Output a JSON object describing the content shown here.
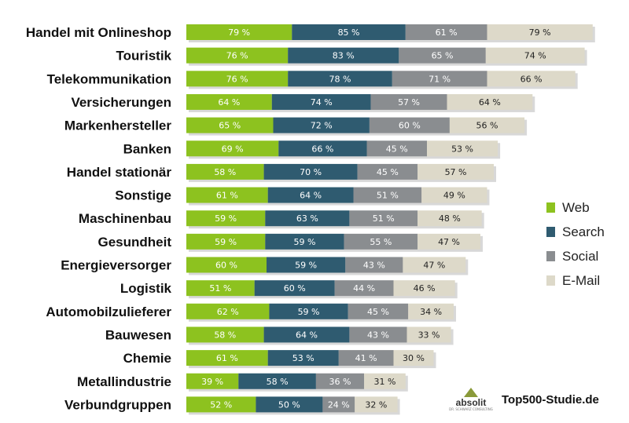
{
  "chart_data": {
    "type": "bar",
    "orientation": "horizontal",
    "stacked": true,
    "value_suffix": " %",
    "categories": [
      "Handel mit Onlineshop",
      "Touristik",
      "Telekommunikation",
      "Versicherungen",
      "Markenhersteller",
      "Banken",
      "Handel stationär",
      "Sonstige",
      "Maschinenbau",
      "Gesundheit",
      "Energieversorger",
      "Logistik",
      "Automobilzulieferer",
      "Bauwesen",
      "Chemie",
      "Metallindustrie",
      "Verbundgruppen"
    ],
    "series": [
      {
        "name": "Web",
        "color": "#8dc21f",
        "label_color": "#ffffff",
        "values": [
          79,
          76,
          76,
          64,
          65,
          69,
          58,
          61,
          59,
          59,
          60,
          51,
          62,
          58,
          61,
          39,
          52
        ]
      },
      {
        "name": "Search",
        "color": "#2f5b70",
        "label_color": "#ffffff",
        "values": [
          85,
          83,
          78,
          74,
          72,
          66,
          70,
          64,
          63,
          59,
          59,
          60,
          59,
          64,
          53,
          58,
          50
        ]
      },
      {
        "name": "Social",
        "color": "#8a8d90",
        "label_color": "#ffffff",
        "values": [
          61,
          65,
          71,
          57,
          60,
          45,
          45,
          51,
          51,
          55,
          43,
          44,
          45,
          43,
          41,
          36,
          24
        ]
      },
      {
        "name": "E-Mail",
        "color": "#ddd9c9",
        "label_color": "#222222",
        "values": [
          79,
          74,
          66,
          64,
          56,
          53,
          57,
          49,
          48,
          47,
          47,
          46,
          34,
          33,
          30,
          31,
          32
        ]
      }
    ],
    "legend": "right",
    "grid": false
  },
  "brand": {
    "logo_text": "absolit",
    "logo_subtext": "DR. SCHWARZ CONSULTING",
    "site": "Top500-Studie.de"
  }
}
